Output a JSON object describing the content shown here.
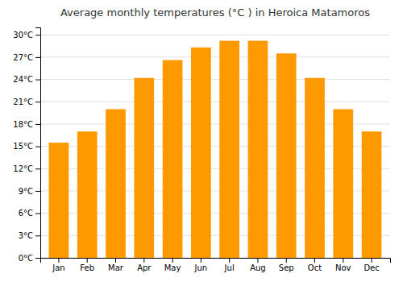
{
  "chart_data": {
    "type": "bar",
    "title": "Average monthly temperatures (°C ) in Heroica Matamoros",
    "categories": [
      "Jan",
      "Feb",
      "Mar",
      "Apr",
      "May",
      "Jun",
      "Jul",
      "Aug",
      "Sep",
      "Oct",
      "Nov",
      "Dec"
    ],
    "values": [
      15.5,
      17.0,
      20.0,
      24.2,
      26.6,
      28.3,
      29.2,
      29.2,
      27.5,
      24.2,
      20.0,
      17.0
    ],
    "color": "#FF9900",
    "ylim": [
      0,
      31
    ],
    "yticks": [
      {
        "value": 0,
        "label": "0°C"
      },
      {
        "value": 3,
        "label": "3°C"
      },
      {
        "value": 6,
        "label": "6°C"
      },
      {
        "value": 9,
        "label": "9°C"
      },
      {
        "value": 12,
        "label": "12°C"
      },
      {
        "value": 15,
        "label": "15°C"
      },
      {
        "value": 18,
        "label": "18°C"
      },
      {
        "value": 21,
        "label": "21°C"
      },
      {
        "value": 24,
        "label": "24°C"
      },
      {
        "value": 27,
        "label": "27°C"
      },
      {
        "value": 30,
        "label": "30°C"
      }
    ],
    "grid": true
  }
}
